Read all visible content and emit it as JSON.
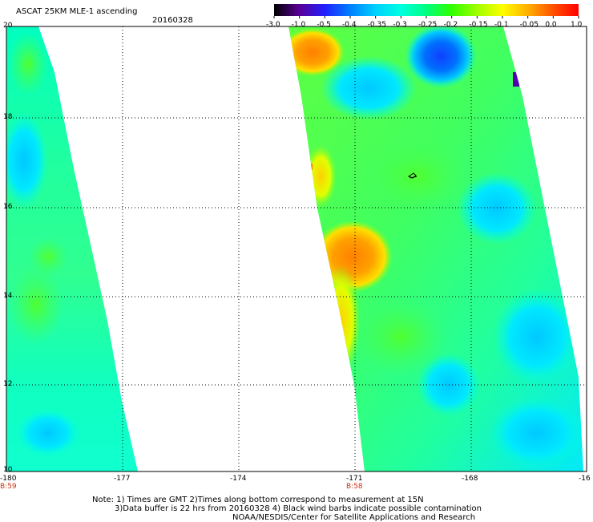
{
  "header": {
    "title": "ASCAT 25KM MLE-1 ascending",
    "date": "20160328"
  },
  "colorbar": {
    "labels": [
      "-3.0",
      "-1.0",
      "-0.5",
      "-0.4",
      "-0.35",
      "-0.3",
      "-0.25",
      "-0.2",
      "-0.15",
      "-0.1",
      "-0.05",
      "0.0",
      "1.0"
    ],
    "colors": [
      "#000000",
      "#5a0096",
      "#2020ff",
      "#0080ff",
      "#00d0ff",
      "#00ffe0",
      "#00ff80",
      "#30ff00",
      "#a0ff00",
      "#ffff00",
      "#ffb000",
      "#ff5000",
      "#ff0000"
    ]
  },
  "axes": {
    "lat_labels": [
      "20",
      "18",
      "16",
      "14",
      "12",
      "10"
    ],
    "lon_labels": [
      "-180",
      "-177",
      "-174",
      "-171",
      "-168",
      "-16"
    ]
  },
  "time_labels": [
    "B:59",
    "B:58"
  ],
  "footer": {
    "line1": "Note: 1) Times are GMT 2)Times along bottom correspond to measurement at 15N",
    "line2": "3)Data buffer is 22 hrs from 20160328 4) Black wind barbs indicate possible contamination",
    "line3": "NOAA/NESDIS/Center for Satellite Applications and Research"
  }
}
